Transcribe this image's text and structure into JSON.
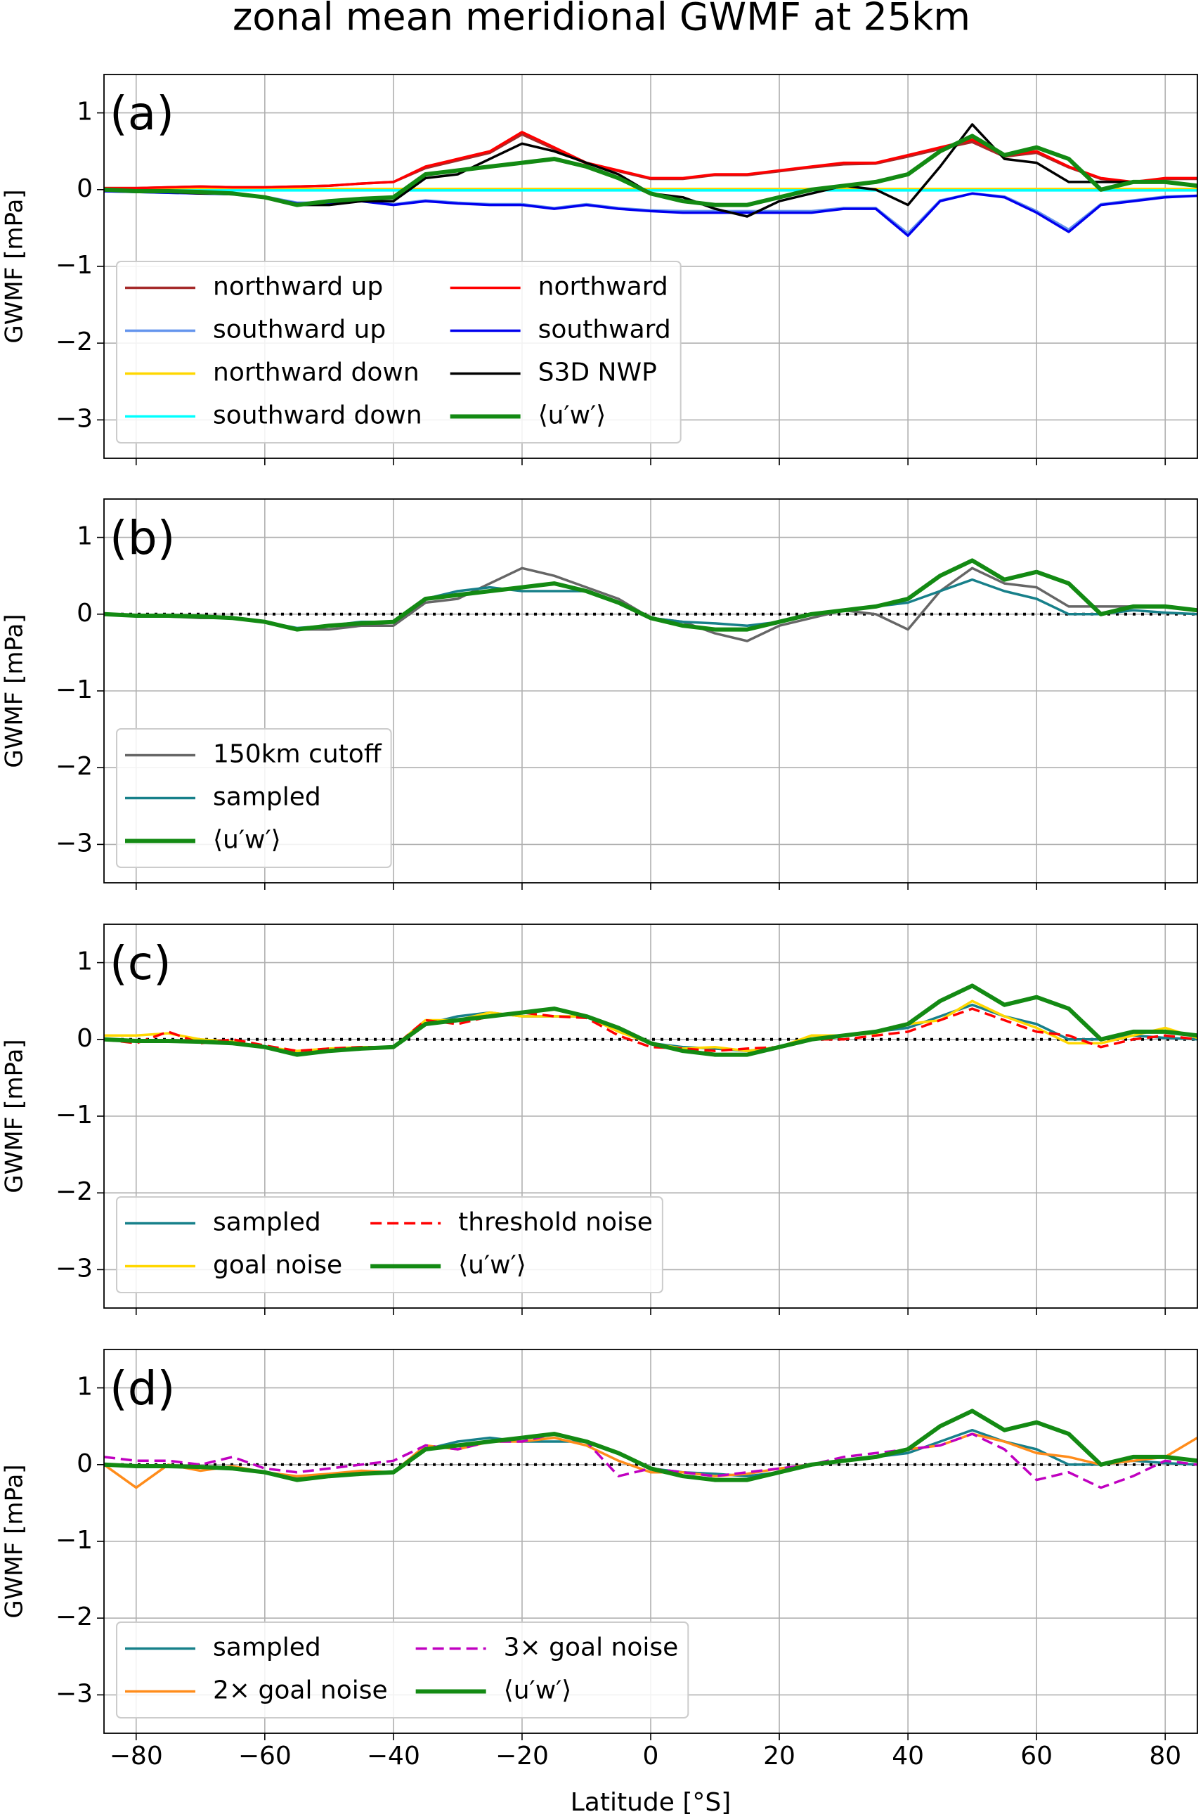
{
  "chart_data": [
    {
      "type": "line",
      "title": "zonal mean meridional GWMF at 25km",
      "panel_label": "(a)",
      "ylabel": "GWMF [mPa]",
      "x": [
        -85,
        -80,
        -75,
        -70,
        -65,
        -60,
        -55,
        -50,
        -45,
        -40,
        -35,
        -30,
        -25,
        -20,
        -15,
        -10,
        -5,
        0,
        5,
        10,
        15,
        20,
        25,
        30,
        35,
        40,
        45,
        50,
        55,
        60,
        65,
        70,
        75,
        80,
        85
      ],
      "xlim": [
        -85,
        85
      ],
      "ylim": [
        -3.5,
        1.5
      ],
      "xticks": [
        -80,
        -60,
        -40,
        -20,
        0,
        20,
        40,
        60,
        80
      ],
      "yticks": [
        {
          "value": -3,
          "label": "−3"
        },
        {
          "value": -2,
          "label": "−2"
        },
        {
          "value": -1,
          "label": "−1"
        },
        0,
        1
      ],
      "grid": true,
      "legend": "lower left",
      "legend_columns": 2,
      "series": [
        {
          "name": "northward up",
          "color": "#a52a2a",
          "values": [
            0.02,
            0.02,
            0.03,
            0.04,
            0.03,
            0.03,
            0.04,
            0.05,
            0.08,
            0.1,
            0.28,
            0.38,
            0.48,
            0.72,
            0.53,
            0.34,
            0.24,
            0.14,
            0.14,
            0.19,
            0.19,
            0.24,
            0.29,
            0.33,
            0.34,
            0.43,
            0.53,
            0.62,
            0.43,
            0.48,
            0.29,
            0.14,
            0.1,
            0.14,
            0.14
          ]
        },
        {
          "name": "southward up",
          "color": "#6495ed",
          "values": [
            -0.02,
            -0.03,
            -0.04,
            -0.05,
            -0.06,
            -0.09,
            -0.17,
            -0.17,
            -0.14,
            -0.19,
            -0.14,
            -0.17,
            -0.19,
            -0.19,
            -0.24,
            -0.19,
            -0.24,
            -0.27,
            -0.28,
            -0.28,
            -0.28,
            -0.28,
            -0.28,
            -0.24,
            -0.24,
            -0.57,
            -0.14,
            -0.05,
            -0.09,
            -0.28,
            -0.52,
            -0.19,
            -0.14,
            -0.09,
            -0.08
          ]
        },
        {
          "name": "northward down",
          "color": "#ffd700",
          "values": [
            0.01,
            0.01,
            0.01,
            0.01,
            0.01,
            0.01,
            0.01,
            0.01,
            0.01,
            0.01,
            0.01,
            0.01,
            0.01,
            0.01,
            0.01,
            0.01,
            0.01,
            0.01,
            0.01,
            0.01,
            0.01,
            0.01,
            0.01,
            0.01,
            0.01,
            0.01,
            0.01,
            0.01,
            0.01,
            0.01,
            0.01,
            0.01,
            0.01,
            0.01,
            0.01
          ]
        },
        {
          "name": "southward down",
          "color": "#00ffff",
          "values": [
            -0.01,
            -0.01,
            -0.01,
            -0.01,
            -0.01,
            -0.01,
            -0.01,
            -0.01,
            -0.01,
            -0.01,
            -0.01,
            -0.01,
            -0.01,
            -0.01,
            -0.01,
            -0.01,
            -0.01,
            -0.01,
            -0.01,
            -0.01,
            -0.01,
            -0.01,
            -0.01,
            -0.01,
            -0.01,
            -0.01,
            -0.01,
            -0.01,
            -0.01,
            -0.01,
            -0.01,
            -0.01,
            -0.01,
            -0.01,
            -0.01
          ]
        },
        {
          "name": "northward",
          "color": "#ff0000",
          "values": [
            0.02,
            0.02,
            0.03,
            0.04,
            0.03,
            0.03,
            0.04,
            0.05,
            0.08,
            0.1,
            0.3,
            0.4,
            0.5,
            0.75,
            0.55,
            0.35,
            0.25,
            0.15,
            0.15,
            0.2,
            0.2,
            0.25,
            0.3,
            0.35,
            0.35,
            0.45,
            0.55,
            0.65,
            0.45,
            0.5,
            0.3,
            0.15,
            0.1,
            0.15,
            0.15
          ]
        },
        {
          "name": "southward",
          "color": "#0000ee",
          "values": [
            -0.02,
            -0.03,
            -0.04,
            -0.05,
            -0.06,
            -0.1,
            -0.18,
            -0.18,
            -0.15,
            -0.2,
            -0.15,
            -0.18,
            -0.2,
            -0.2,
            -0.25,
            -0.2,
            -0.25,
            -0.28,
            -0.3,
            -0.3,
            -0.3,
            -0.3,
            -0.3,
            -0.25,
            -0.25,
            -0.6,
            -0.15,
            -0.05,
            -0.1,
            -0.3,
            -0.55,
            -0.2,
            -0.15,
            -0.1,
            -0.08
          ]
        },
        {
          "name": "S3D NWP",
          "color": "#000000",
          "values": [
            0,
            -0.02,
            -0.03,
            -0.05,
            -0.05,
            -0.1,
            -0.2,
            -0.2,
            -0.15,
            -0.15,
            0.15,
            0.2,
            0.4,
            0.6,
            0.5,
            0.35,
            0.2,
            -0.05,
            -0.1,
            -0.25,
            -0.35,
            -0.15,
            -0.05,
            0.05,
            0,
            -0.2,
            0.3,
            0.85,
            0.4,
            0.35,
            0.1,
            0.1,
            0.1,
            0.1,
            0.05
          ]
        },
        {
          "name": "⟨u′w′⟩",
          "color": "#138a13",
          "width": "thick",
          "values": [
            0,
            -0.02,
            -0.02,
            -0.03,
            -0.05,
            -0.1,
            -0.2,
            -0.15,
            -0.12,
            -0.1,
            0.2,
            0.25,
            0.3,
            0.35,
            0.4,
            0.3,
            0.15,
            -0.05,
            -0.15,
            -0.2,
            -0.2,
            -0.1,
            0,
            0.05,
            0.1,
            0.2,
            0.5,
            0.7,
            0.45,
            0.55,
            0.4,
            0,
            0.1,
            0.1,
            0.05
          ]
        }
      ]
    },
    {
      "type": "line",
      "panel_label": "(b)",
      "ylabel": "GWMF [mPa]",
      "x": [
        -85,
        -80,
        -75,
        -70,
        -65,
        -60,
        -55,
        -50,
        -45,
        -40,
        -35,
        -30,
        -25,
        -20,
        -15,
        -10,
        -5,
        0,
        5,
        10,
        15,
        20,
        25,
        30,
        35,
        40,
        45,
        50,
        55,
        60,
        65,
        70,
        75,
        80,
        85
      ],
      "xlim": [
        -85,
        85
      ],
      "ylim": [
        -3.5,
        1.5
      ],
      "xticks": [
        -80,
        -60,
        -40,
        -20,
        0,
        20,
        40,
        60,
        80
      ],
      "yticks": [
        {
          "value": -3,
          "label": "−3"
        },
        {
          "value": -2,
          "label": "−2"
        },
        {
          "value": -1,
          "label": "−1"
        },
        0,
        1
      ],
      "grid": true,
      "legend": "lower left",
      "legend_columns": 1,
      "reference_line": {
        "value": 0,
        "color": "#000000",
        "style": "dotted"
      },
      "series": [
        {
          "name": "150km cutoff",
          "color": "#666666",
          "values": [
            0,
            -0.02,
            -0.03,
            -0.05,
            -0.05,
            -0.1,
            -0.2,
            -0.2,
            -0.15,
            -0.15,
            0.15,
            0.2,
            0.4,
            0.6,
            0.5,
            0.35,
            0.2,
            -0.05,
            -0.1,
            -0.25,
            -0.35,
            -0.15,
            -0.05,
            0.05,
            0,
            -0.2,
            0.3,
            0.6,
            0.4,
            0.35,
            0.1,
            0.1,
            0.1,
            0.1,
            0.05
          ]
        },
        {
          "name": "sampled",
          "color": "#17808a",
          "values": [
            0,
            -0.02,
            -0.02,
            -0.03,
            -0.05,
            -0.1,
            -0.18,
            -0.15,
            -0.1,
            -0.1,
            0.2,
            0.3,
            0.35,
            0.3,
            0.3,
            0.3,
            0.15,
            -0.05,
            -0.1,
            -0.12,
            -0.15,
            -0.1,
            0,
            0.05,
            0.1,
            0.15,
            0.3,
            0.45,
            0.3,
            0.2,
            0,
            0,
            0.05,
            0.02,
            0
          ]
        },
        {
          "name": "⟨u′w′⟩",
          "color": "#138a13",
          "width": "thick",
          "values": [
            0,
            -0.02,
            -0.02,
            -0.03,
            -0.05,
            -0.1,
            -0.2,
            -0.15,
            -0.12,
            -0.1,
            0.2,
            0.25,
            0.3,
            0.35,
            0.4,
            0.3,
            0.15,
            -0.05,
            -0.15,
            -0.2,
            -0.2,
            -0.1,
            0,
            0.05,
            0.1,
            0.2,
            0.5,
            0.7,
            0.45,
            0.55,
            0.4,
            0,
            0.1,
            0.1,
            0.05
          ]
        }
      ]
    },
    {
      "type": "line",
      "panel_label": "(c)",
      "ylabel": "GWMF [mPa]",
      "x": [
        -85,
        -80,
        -75,
        -70,
        -65,
        -60,
        -55,
        -50,
        -45,
        -40,
        -35,
        -30,
        -25,
        -20,
        -15,
        -10,
        -5,
        0,
        5,
        10,
        15,
        20,
        25,
        30,
        35,
        40,
        45,
        50,
        55,
        60,
        65,
        70,
        75,
        80,
        85
      ],
      "xlim": [
        -85,
        85
      ],
      "ylim": [
        -3.5,
        1.5
      ],
      "xticks": [
        -80,
        -60,
        -40,
        -20,
        0,
        20,
        40,
        60,
        80
      ],
      "yticks": [
        {
          "value": -3,
          "label": "−3"
        },
        {
          "value": -2,
          "label": "−2"
        },
        {
          "value": -1,
          "label": "−1"
        },
        0,
        1
      ],
      "grid": true,
      "legend": "lower left",
      "legend_columns": 2,
      "reference_line": {
        "value": 0,
        "color": "#000000",
        "style": "dotted"
      },
      "series": [
        {
          "name": "sampled",
          "color": "#17808a",
          "values": [
            0,
            -0.02,
            -0.02,
            -0.03,
            -0.05,
            -0.1,
            -0.18,
            -0.15,
            -0.1,
            -0.1,
            0.2,
            0.3,
            0.35,
            0.3,
            0.3,
            0.3,
            0.15,
            -0.05,
            -0.1,
            -0.12,
            -0.15,
            -0.1,
            0,
            0.05,
            0.1,
            0.15,
            0.3,
            0.45,
            0.3,
            0.2,
            0,
            0,
            0.05,
            0.02,
            0
          ]
        },
        {
          "name": "goal noise",
          "color": "#ffd700",
          "values": [
            0.05,
            0.05,
            0.08,
            0,
            -0.03,
            -0.1,
            -0.15,
            -0.12,
            -0.1,
            -0.1,
            0.25,
            0.25,
            0.35,
            0.3,
            0.3,
            0.3,
            0.1,
            -0.05,
            -0.12,
            -0.1,
            -0.15,
            -0.1,
            0.05,
            0.05,
            0.08,
            0.2,
            0.25,
            0.5,
            0.3,
            0.15,
            -0.05,
            -0.05,
            0.05,
            0.15,
            0.02
          ]
        },
        {
          "name": "threshold noise",
          "color": "#ff0000",
          "style": "dashed",
          "values": [
            0,
            -0.05,
            0.1,
            -0.05,
            0,
            -0.08,
            -0.15,
            -0.12,
            -0.1,
            -0.1,
            0.25,
            0.2,
            0.3,
            0.35,
            0.3,
            0.28,
            0.05,
            -0.1,
            -0.12,
            -0.15,
            -0.12,
            -0.1,
            0,
            0,
            0.05,
            0.1,
            0.25,
            0.4,
            0.25,
            0.1,
            0.05,
            -0.1,
            0,
            0.05,
            0
          ]
        },
        {
          "name": "⟨u′w′⟩",
          "color": "#138a13",
          "width": "thick",
          "values": [
            0,
            -0.02,
            -0.02,
            -0.03,
            -0.05,
            -0.1,
            -0.2,
            -0.15,
            -0.12,
            -0.1,
            0.2,
            0.25,
            0.3,
            0.35,
            0.4,
            0.3,
            0.15,
            -0.05,
            -0.15,
            -0.2,
            -0.2,
            -0.1,
            0,
            0.05,
            0.1,
            0.2,
            0.5,
            0.7,
            0.45,
            0.55,
            0.4,
            0,
            0.1,
            0.1,
            0.05
          ]
        }
      ]
    },
    {
      "type": "line",
      "panel_label": "(d)",
      "ylabel": "GWMF [mPa]",
      "xlabel": "Latitude [°S]",
      "x": [
        -85,
        -80,
        -75,
        -70,
        -65,
        -60,
        -55,
        -50,
        -45,
        -40,
        -35,
        -30,
        -25,
        -20,
        -15,
        -10,
        -5,
        0,
        5,
        10,
        15,
        20,
        25,
        30,
        35,
        40,
        45,
        50,
        55,
        60,
        65,
        70,
        75,
        80,
        85
      ],
      "xlim": [
        -85,
        85
      ],
      "ylim": [
        -3.5,
        1.5
      ],
      "xticks": [
        {
          "value": -80,
          "label": "−80"
        },
        {
          "value": -60,
          "label": "−60"
        },
        {
          "value": -40,
          "label": "−40"
        },
        {
          "value": -20,
          "label": "−20"
        },
        0,
        20,
        40,
        60,
        80
      ],
      "yticks": [
        {
          "value": -3,
          "label": "−3"
        },
        {
          "value": -2,
          "label": "−2"
        },
        {
          "value": -1,
          "label": "−1"
        },
        0,
        1
      ],
      "grid": true,
      "legend": "lower left",
      "legend_columns": 2,
      "reference_line": {
        "value": 0,
        "color": "#000000",
        "style": "dotted"
      },
      "series": [
        {
          "name": "sampled",
          "color": "#17808a",
          "values": [
            0,
            -0.02,
            -0.02,
            -0.03,
            -0.05,
            -0.1,
            -0.18,
            -0.15,
            -0.1,
            -0.1,
            0.2,
            0.3,
            0.35,
            0.3,
            0.3,
            0.3,
            0.15,
            -0.05,
            -0.1,
            -0.12,
            -0.15,
            -0.1,
            0,
            0.05,
            0.1,
            0.15,
            0.3,
            0.45,
            0.3,
            0.2,
            0,
            0,
            0.05,
            0.02,
            0
          ]
        },
        {
          "name": "2× goal noise",
          "color": "#ff8c1a",
          "values": [
            0,
            -0.3,
            0,
            -0.08,
            -0.02,
            -0.1,
            -0.15,
            -0.12,
            -0.08,
            -0.1,
            0.25,
            0.2,
            0.3,
            0.3,
            0.35,
            0.25,
            0.05,
            -0.1,
            -0.1,
            -0.15,
            -0.12,
            -0.05,
            0,
            0.05,
            0.1,
            0.2,
            0.25,
            0.4,
            0.3,
            0.15,
            0.1,
            0,
            0.05,
            0.1,
            0.35
          ]
        },
        {
          "name": "3× goal noise",
          "color": "#c000c0",
          "style": "dashed",
          "values": [
            0.1,
            0.05,
            0.05,
            0,
            0.1,
            -0.05,
            -0.1,
            -0.05,
            0,
            0.05,
            0.25,
            0.2,
            0.3,
            0.3,
            0.4,
            0.3,
            -0.15,
            -0.05,
            -0.1,
            -0.15,
            -0.1,
            -0.05,
            0,
            0.1,
            0.15,
            0.2,
            0.25,
            0.4,
            0.2,
            -0.2,
            -0.1,
            -0.3,
            -0.15,
            0.05,
            0
          ]
        },
        {
          "name": "⟨u′w′⟩",
          "color": "#138a13",
          "width": "thick",
          "values": [
            0,
            -0.02,
            -0.02,
            -0.03,
            -0.05,
            -0.1,
            -0.2,
            -0.15,
            -0.12,
            -0.1,
            0.2,
            0.25,
            0.3,
            0.35,
            0.4,
            0.3,
            0.15,
            -0.05,
            -0.15,
            -0.2,
            -0.2,
            -0.1,
            0,
            0.05,
            0.1,
            0.2,
            0.5,
            0.7,
            0.45,
            0.55,
            0.4,
            0,
            0.1,
            0.1,
            0.05
          ]
        }
      ]
    }
  ]
}
